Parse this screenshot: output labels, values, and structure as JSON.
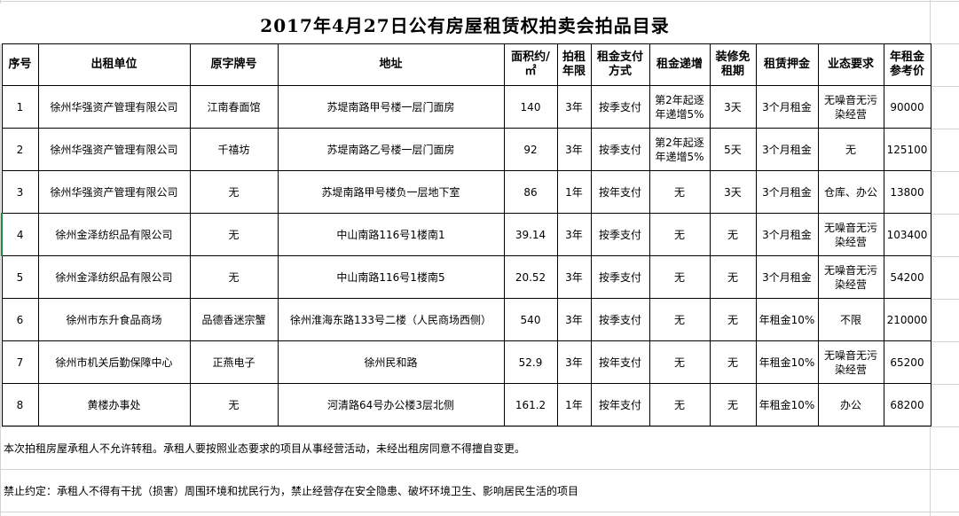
{
  "title": "2017年4月27日公有房屋租赁权拍卖会拍品目录",
  "table": {
    "headers": [
      "序号",
      "出租单位",
      "原字牌号",
      "地址",
      "面积约/㎡",
      "拍租年限",
      "租金支付方式",
      "租金递增",
      "装修免租期",
      "租赁押金",
      "业态要求",
      "年租金参考价"
    ],
    "rows": [
      [
        "1",
        "徐州华强资产管理有限公司",
        "江南春面馆",
        "苏堤南路甲号楼一层门面房",
        "140",
        "3年",
        "按季支付",
        "第2年起逐年递增5%",
        "3天",
        "3个月租金",
        "无噪音无污染经营",
        "90000"
      ],
      [
        "2",
        "徐州华强资产管理有限公司",
        "千禧坊",
        "苏堤南路乙号楼一层门面房",
        "92",
        "3年",
        "按季支付",
        "第2年起逐年递增5%",
        "5天",
        "3个月租金",
        "无",
        "125100"
      ],
      [
        "3",
        "徐州华强资产管理有限公司",
        "无",
        "苏堤南路甲号楼负一层地下室",
        "86",
        "1年",
        "按年支付",
        "无",
        "3天",
        "3个月租金",
        "仓库、办公",
        "13800"
      ],
      [
        "4",
        "徐州金泽纺织品有限公司",
        "无",
        "中山南路116号1楼南1",
        "39.14",
        "3年",
        "按季支付",
        "无",
        "无",
        "3个月租金",
        "无噪音无污染经营",
        "103400"
      ],
      [
        "5",
        "徐州金泽纺织品有限公司",
        "无",
        "中山南路116号1楼南5",
        "20.52",
        "3年",
        "按季支付",
        "无",
        "无",
        "3个月租金",
        "无噪音无污染经营",
        "54200"
      ],
      [
        "6",
        "徐州市东升食品商场",
        "品德香迷宗蟹",
        "徐州淮海东路133号二楼（人民商场西侧）",
        "540",
        "3年",
        "按季支付",
        "无",
        "无",
        "年租金10%",
        "不限",
        "210000"
      ],
      [
        "7",
        "徐州市机关后勤保障中心",
        "正燕电子",
        "徐州民和路",
        "52.9",
        "3年",
        "按年支付",
        "无",
        "无",
        "年租金10%",
        "无噪音无污染经营",
        "65200"
      ],
      [
        "8",
        "黄楼办事处",
        "无",
        "河清路64号办公楼3层北侧",
        "161.2",
        "1年",
        "按年支付",
        "无",
        "无",
        "年租金10%",
        "办公",
        "68200"
      ]
    ]
  },
  "notes": [
    "本次拍租房屋承租人不允许转租。承租人要按照业态要求的项目从事经营活动，未经出租房同意不得擅自变更。",
    "禁止约定：承租人不得有干扰（损害）周围环境和扰民行为，禁止经营存在安全隐患、破坏环境卫生、影响居民生活的项目"
  ]
}
